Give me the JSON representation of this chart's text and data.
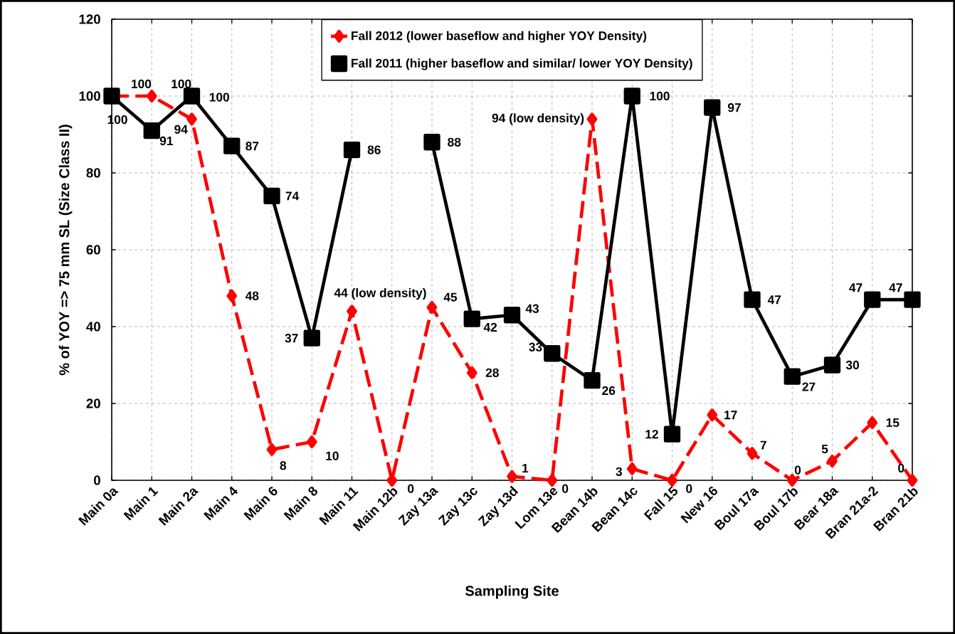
{
  "chart_data": {
    "type": "line",
    "xlabel": "Sampling Site",
    "ylabel": "% of YOY => 75 mm SL (Size Class II)",
    "categories": [
      "Main 0a",
      "Main 1",
      "Main 2a",
      "Main 4",
      "Main 6",
      "Main 8",
      "Main 11",
      "Main 12b",
      "Zay 13a",
      "Zay 13c",
      "Zay 13d",
      "Lom 13e",
      "Bean 14b",
      "Bean 14c",
      "Fall 15",
      "New 16",
      "Boul 17a",
      "Boul 17b",
      "Bear 18a",
      "Bran 21a-2",
      "Bran 21b"
    ],
    "series": [
      {
        "name": "Fall 2012 (lower baseflow and higher YOY Density)",
        "color": "#ff0000",
        "marker": "diamond",
        "line_style": "dashed",
        "values": [
          100,
          100,
          94,
          48,
          8,
          10,
          44,
          0,
          45,
          28,
          1,
          0,
          94,
          3,
          0,
          17,
          7,
          0,
          5,
          15,
          0
        ],
        "value_labels": [
          "100",
          "100",
          "94",
          "48",
          "8",
          "10",
          "44 (low density)",
          "0",
          "45",
          "28",
          "1",
          "0",
          "94 (low density)",
          "3",
          "0",
          "17",
          "7",
          "0",
          "5",
          "15",
          "0"
        ]
      },
      {
        "name": "Fall 2011 (higher baseflow and similar/ lower YOY Density)",
        "color": "#000000",
        "marker": "square",
        "line_style": "solid",
        "values": [
          100,
          91,
          100,
          87,
          74,
          37,
          86,
          null,
          88,
          42,
          43,
          33,
          26,
          100,
          12,
          97,
          47,
          27,
          30,
          47,
          47
        ],
        "value_labels": [
          "100",
          "91",
          "100",
          "87",
          "74",
          "37",
          "86",
          null,
          "88",
          "42",
          "43",
          "33",
          "26",
          "100",
          "12",
          "97",
          "47",
          "27",
          "30",
          "47",
          "47"
        ]
      }
    ],
    "ylim": [
      0,
      120
    ],
    "yticks": [
      0,
      20,
      40,
      60,
      80,
      100,
      120
    ],
    "grid": true,
    "legend": "top"
  }
}
